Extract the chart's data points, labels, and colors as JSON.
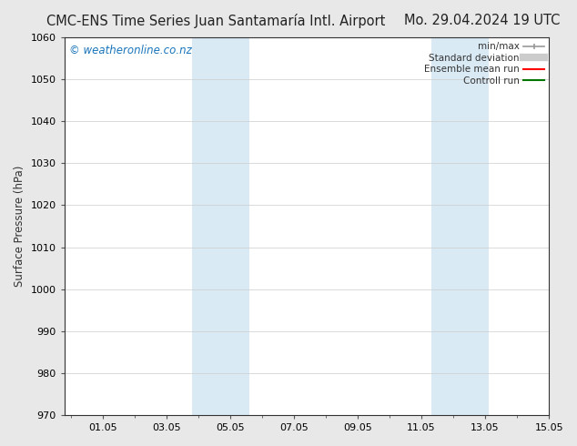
{
  "title_left": "CMC-ENS Time Series Juan Santamaría Intl. Airport",
  "title_right": "Mo. 29.04.2024 19 UTC",
  "ylabel": "Surface Pressure (hPa)",
  "ylim": [
    970,
    1060
  ],
  "yticks": [
    970,
    980,
    990,
    1000,
    1010,
    1020,
    1030,
    1040,
    1050,
    1060
  ],
  "xlim_start": -0.2,
  "xlim_end": 14.8,
  "xtick_positions": [
    1.0,
    3.0,
    5.0,
    7.0,
    9.0,
    11.0,
    13.0,
    15.0
  ],
  "xtick_labels": [
    "01.05",
    "03.05",
    "05.05",
    "07.05",
    "09.05",
    "11.05",
    "13.05",
    "15.05"
  ],
  "shaded_regions": [
    {
      "xmin": 3.8,
      "xmax": 5.6
    },
    {
      "xmin": 11.3,
      "xmax": 13.1
    }
  ],
  "shade_color": "#daeaf5",
  "watermark_text": "© weatheronline.co.nz",
  "watermark_color": "#1a75bb",
  "legend_labels": [
    "min/max",
    "Standard deviation",
    "Ensemble mean run",
    "Controll run"
  ],
  "legend_colors": [
    "#999999",
    "#cccccc",
    "#ff0000",
    "#007700"
  ],
  "bg_color": "#e8e8e8",
  "plot_bg_color": "#ffffff",
  "grid_color": "#cccccc",
  "title_fontsize": 10.5,
  "tick_fontsize": 8,
  "ylabel_fontsize": 8.5,
  "watermark_fontsize": 8.5,
  "legend_fontsize": 7.5
}
